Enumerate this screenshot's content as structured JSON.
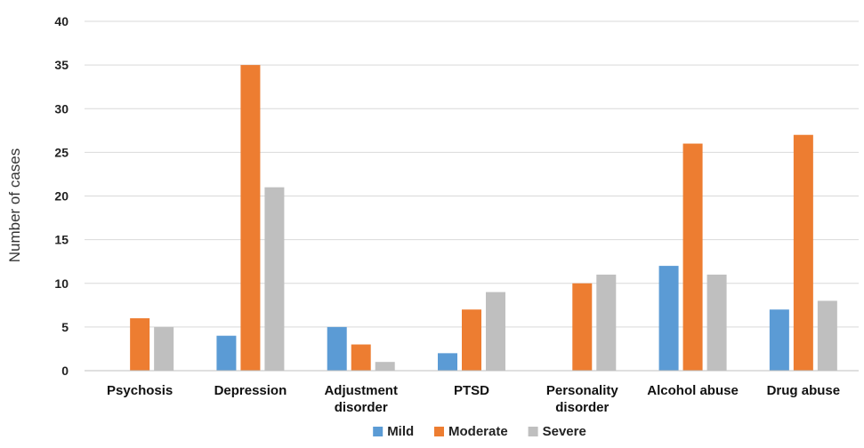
{
  "chart_data": {
    "type": "bar",
    "categories": [
      [
        "Psychosis"
      ],
      [
        "Depression"
      ],
      [
        "Adjustment",
        "disorder"
      ],
      [
        "PTSD"
      ],
      [
        "Personality",
        "disorder"
      ],
      [
        "Alcohol abuse"
      ],
      [
        "Drug abuse"
      ]
    ],
    "series": [
      {
        "name": "Mild",
        "color": "#5B9BD5",
        "values": [
          0,
          4,
          5,
          2,
          0,
          12,
          7
        ]
      },
      {
        "name": "Moderate",
        "color": "#ED7D31",
        "values": [
          6,
          35,
          3,
          7,
          10,
          26,
          27
        ]
      },
      {
        "name": "Severe",
        "color": "#BFBFBF",
        "values": [
          5,
          21,
          1,
          9,
          11,
          11,
          8
        ]
      }
    ],
    "ylabel": "Number of cases",
    "ylim": [
      0,
      40
    ],
    "yticks": [
      0,
      5,
      10,
      15,
      20,
      25,
      30,
      35,
      40
    ],
    "grid": true,
    "legend_position": "bottom"
  }
}
